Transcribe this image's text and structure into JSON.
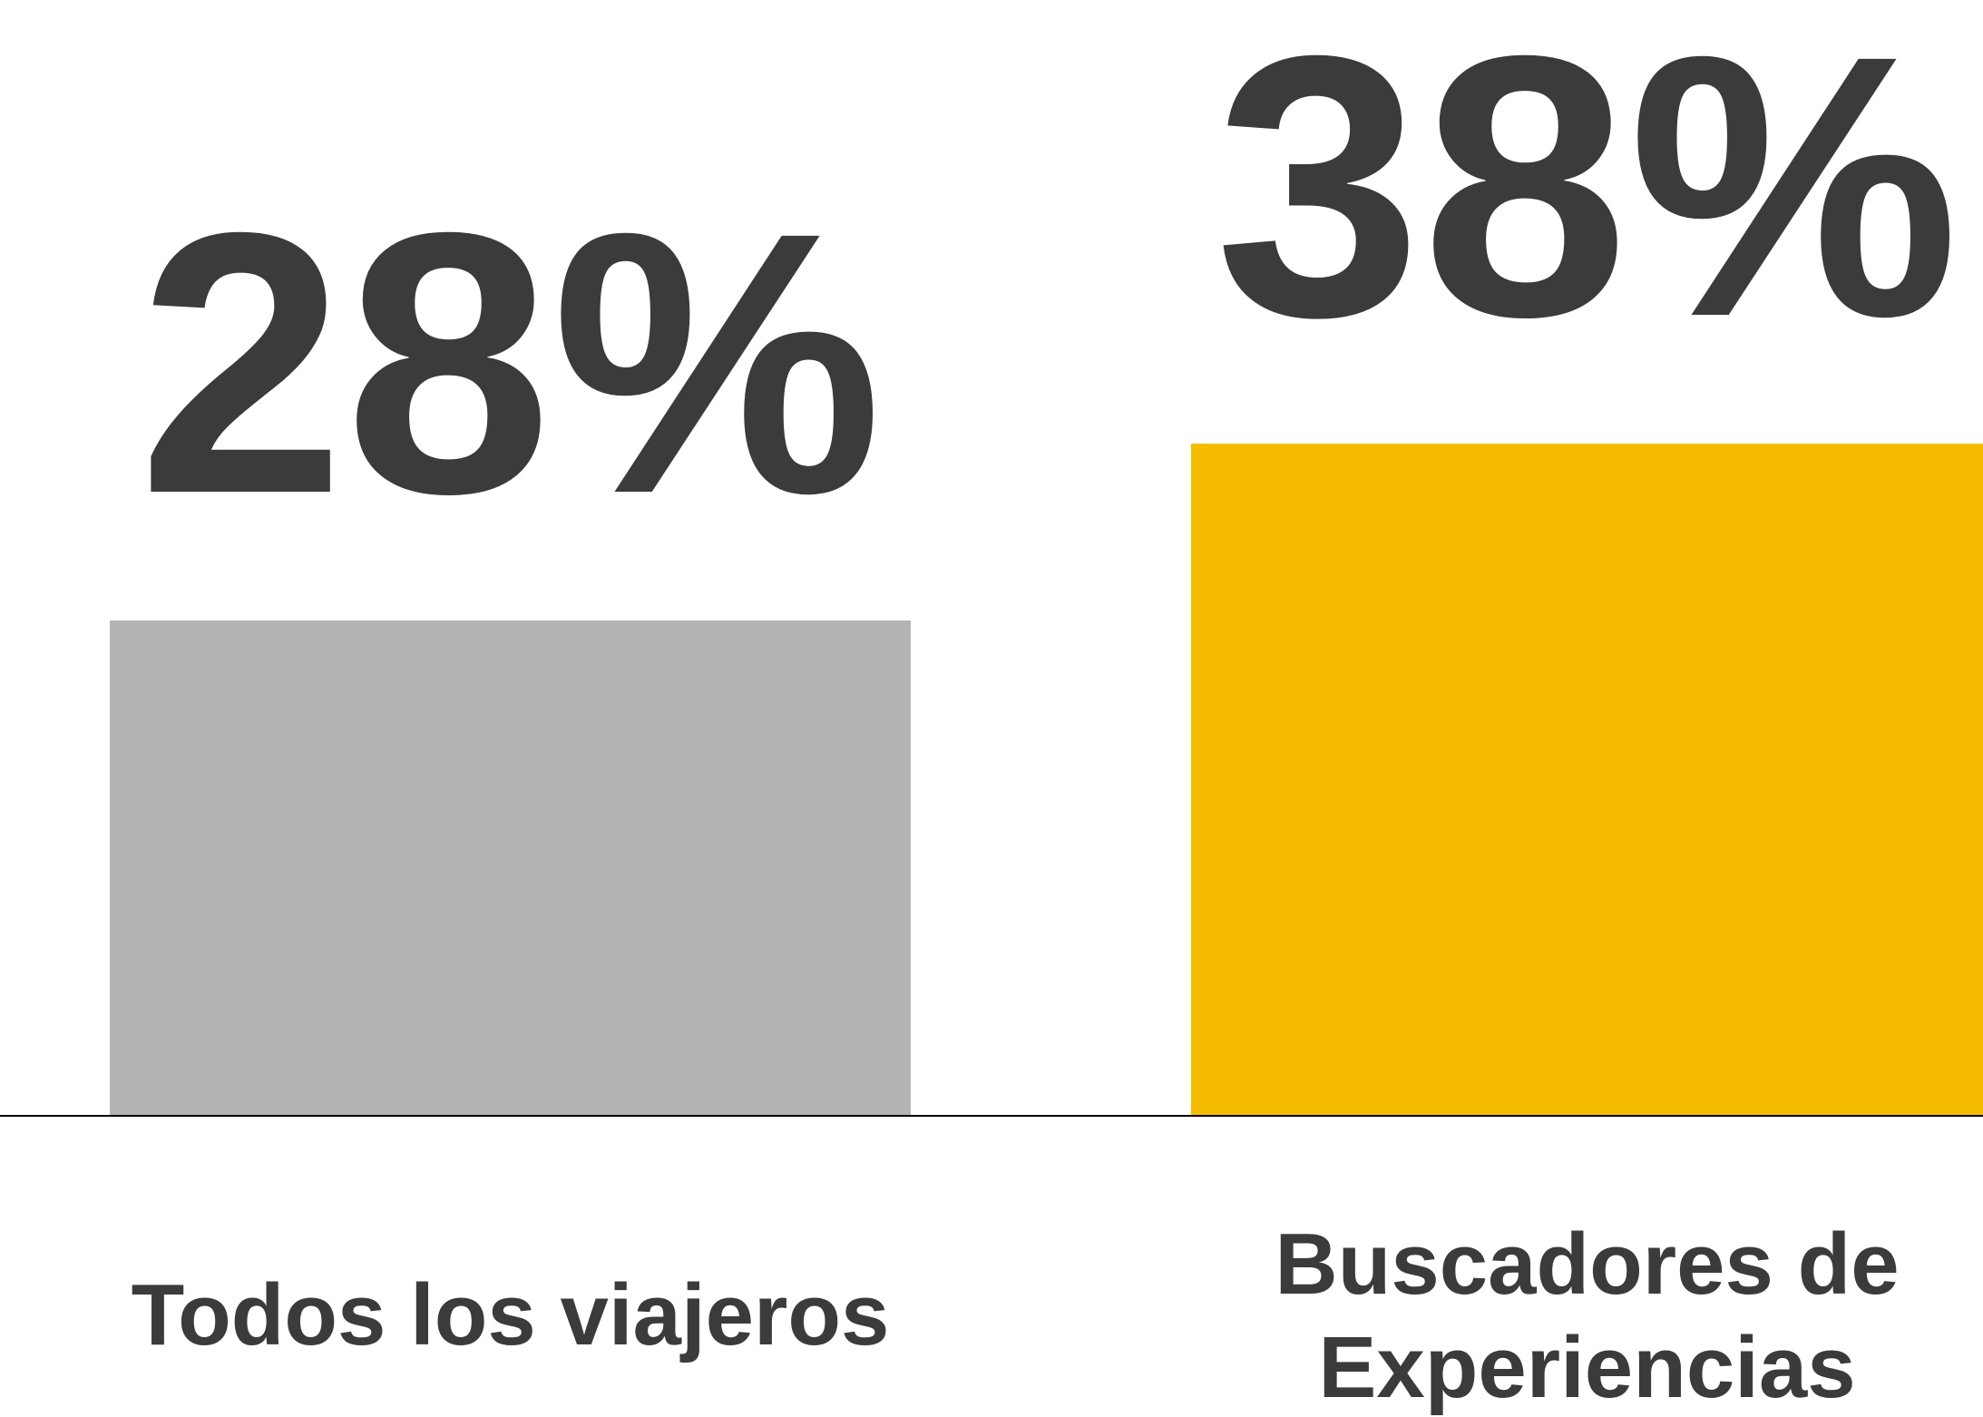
{
  "chart_data": {
    "type": "bar",
    "categories": [
      "Todos los viajeros",
      "Buscadores de Experiencias"
    ],
    "values": [
      28,
      38
    ],
    "value_labels": [
      "28%",
      "38%"
    ],
    "colors": [
      "#b4b4b4",
      "#f5bc00"
    ]
  }
}
